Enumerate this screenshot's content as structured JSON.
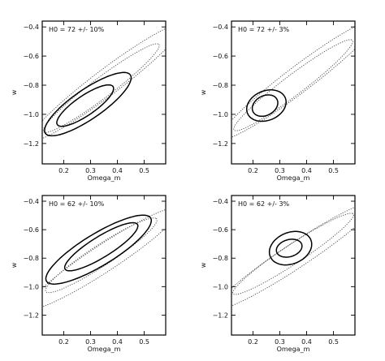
{
  "chart_data": [
    {
      "type": "contour",
      "label": "H0 = 72 +/- 10%",
      "xlabel": "Omega_m",
      "ylabel": "w",
      "xlim": [
        0.12,
        0.58
      ],
      "ylim": [
        -1.34,
        -0.36
      ],
      "xticks": [
        0.2,
        0.3,
        0.4,
        0.5
      ],
      "yticks": [
        -1.2,
        -1.0,
        -0.8,
        -0.6,
        -0.4
      ],
      "contours": [
        {
          "style": "dotted",
          "center": [
            0.36,
            -0.78
          ],
          "semi_major": 0.49,
          "semi_minor": 0.065,
          "angle_deg": 55
        },
        {
          "style": "dotted",
          "center": [
            0.34,
            -0.82
          ],
          "semi_major": 0.37,
          "semi_minor": 0.05,
          "angle_deg": 55
        },
        {
          "style": "solid",
          "center": [
            0.29,
            -0.93
          ],
          "semi_major": 0.26,
          "semi_minor": 0.075,
          "angle_deg": 55
        },
        {
          "style": "solid",
          "center": [
            0.28,
            -0.94
          ],
          "semi_major": 0.17,
          "semi_minor": 0.05,
          "angle_deg": 55
        }
      ]
    },
    {
      "type": "contour",
      "label": "H0 = 72 +/- 3%",
      "xlabel": "Omega_m",
      "ylabel": "w",
      "xlim": [
        0.12,
        0.58
      ],
      "ylim": [
        -1.34,
        -0.36
      ],
      "xticks": [
        0.2,
        0.3,
        0.4,
        0.5
      ],
      "yticks": [
        -1.2,
        -1.0,
        -0.8,
        -0.6,
        -0.4
      ],
      "contours": [
        {
          "style": "dotted",
          "center": [
            0.37,
            -0.76
          ],
          "semi_major": 0.5,
          "semi_minor": 0.065,
          "angle_deg": 55
        },
        {
          "style": "dotted",
          "center": [
            0.35,
            -0.8
          ],
          "semi_major": 0.38,
          "semi_minor": 0.05,
          "angle_deg": 55
        },
        {
          "style": "solid",
          "center": [
            0.25,
            -0.94
          ],
          "semi_major": 0.11,
          "semi_minor": 0.07,
          "angle_deg": 75
        },
        {
          "style": "solid",
          "center": [
            0.245,
            -0.94
          ],
          "semi_major": 0.075,
          "semi_minor": 0.045,
          "angle_deg": 75
        }
      ]
    },
    {
      "type": "contour",
      "label": "H0 = 62 +/- 10%",
      "xlabel": "Omega_m",
      "ylabel": "w",
      "xlim": [
        0.12,
        0.58
      ],
      "ylim": [
        -1.34,
        -0.36
      ],
      "xticks": [
        0.2,
        0.3,
        0.4,
        0.5
      ],
      "yticks": [
        -1.2,
        -1.0,
        -0.8,
        -0.6,
        -0.4
      ],
      "contours": [
        {
          "style": "dotted",
          "center": [
            0.35,
            -0.8
          ],
          "semi_major": 0.45,
          "semi_minor": 0.07,
          "angle_deg": 52
        },
        {
          "style": "dotted",
          "center": [
            0.34,
            -0.78
          ],
          "semi_major": 0.33,
          "semi_minor": 0.055,
          "angle_deg": 52
        },
        {
          "style": "solid",
          "center": [
            0.33,
            -0.74
          ],
          "semi_major": 0.3,
          "semi_minor": 0.085,
          "angle_deg": 52
        },
        {
          "style": "solid",
          "center": [
            0.34,
            -0.72
          ],
          "semi_major": 0.21,
          "semi_minor": 0.055,
          "angle_deg": 52
        }
      ]
    },
    {
      "type": "contour",
      "label": "H0 = 62 +/- 3%",
      "xlabel": "Omega_m",
      "ylabel": "w",
      "xlim": [
        0.12,
        0.58
      ],
      "ylim": [
        -1.34,
        -0.36
      ],
      "xticks": [
        0.2,
        0.3,
        0.4,
        0.5
      ],
      "yticks": [
        -1.2,
        -1.0,
        -0.8,
        -0.6,
        -0.4
      ],
      "contours": [
        {
          "style": "dotted",
          "center": [
            0.36,
            -0.78
          ],
          "semi_major": 0.48,
          "semi_minor": 0.065,
          "angle_deg": 52
        },
        {
          "style": "dotted",
          "center": [
            0.35,
            -0.77
          ],
          "semi_major": 0.36,
          "semi_minor": 0.05,
          "angle_deg": 52
        },
        {
          "style": "solid",
          "center": [
            0.34,
            -0.73
          ],
          "semi_major": 0.12,
          "semi_minor": 0.075,
          "angle_deg": 75
        },
        {
          "style": "solid",
          "center": [
            0.335,
            -0.73
          ],
          "semi_major": 0.065,
          "semi_minor": 0.045,
          "angle_deg": 70
        }
      ]
    }
  ]
}
